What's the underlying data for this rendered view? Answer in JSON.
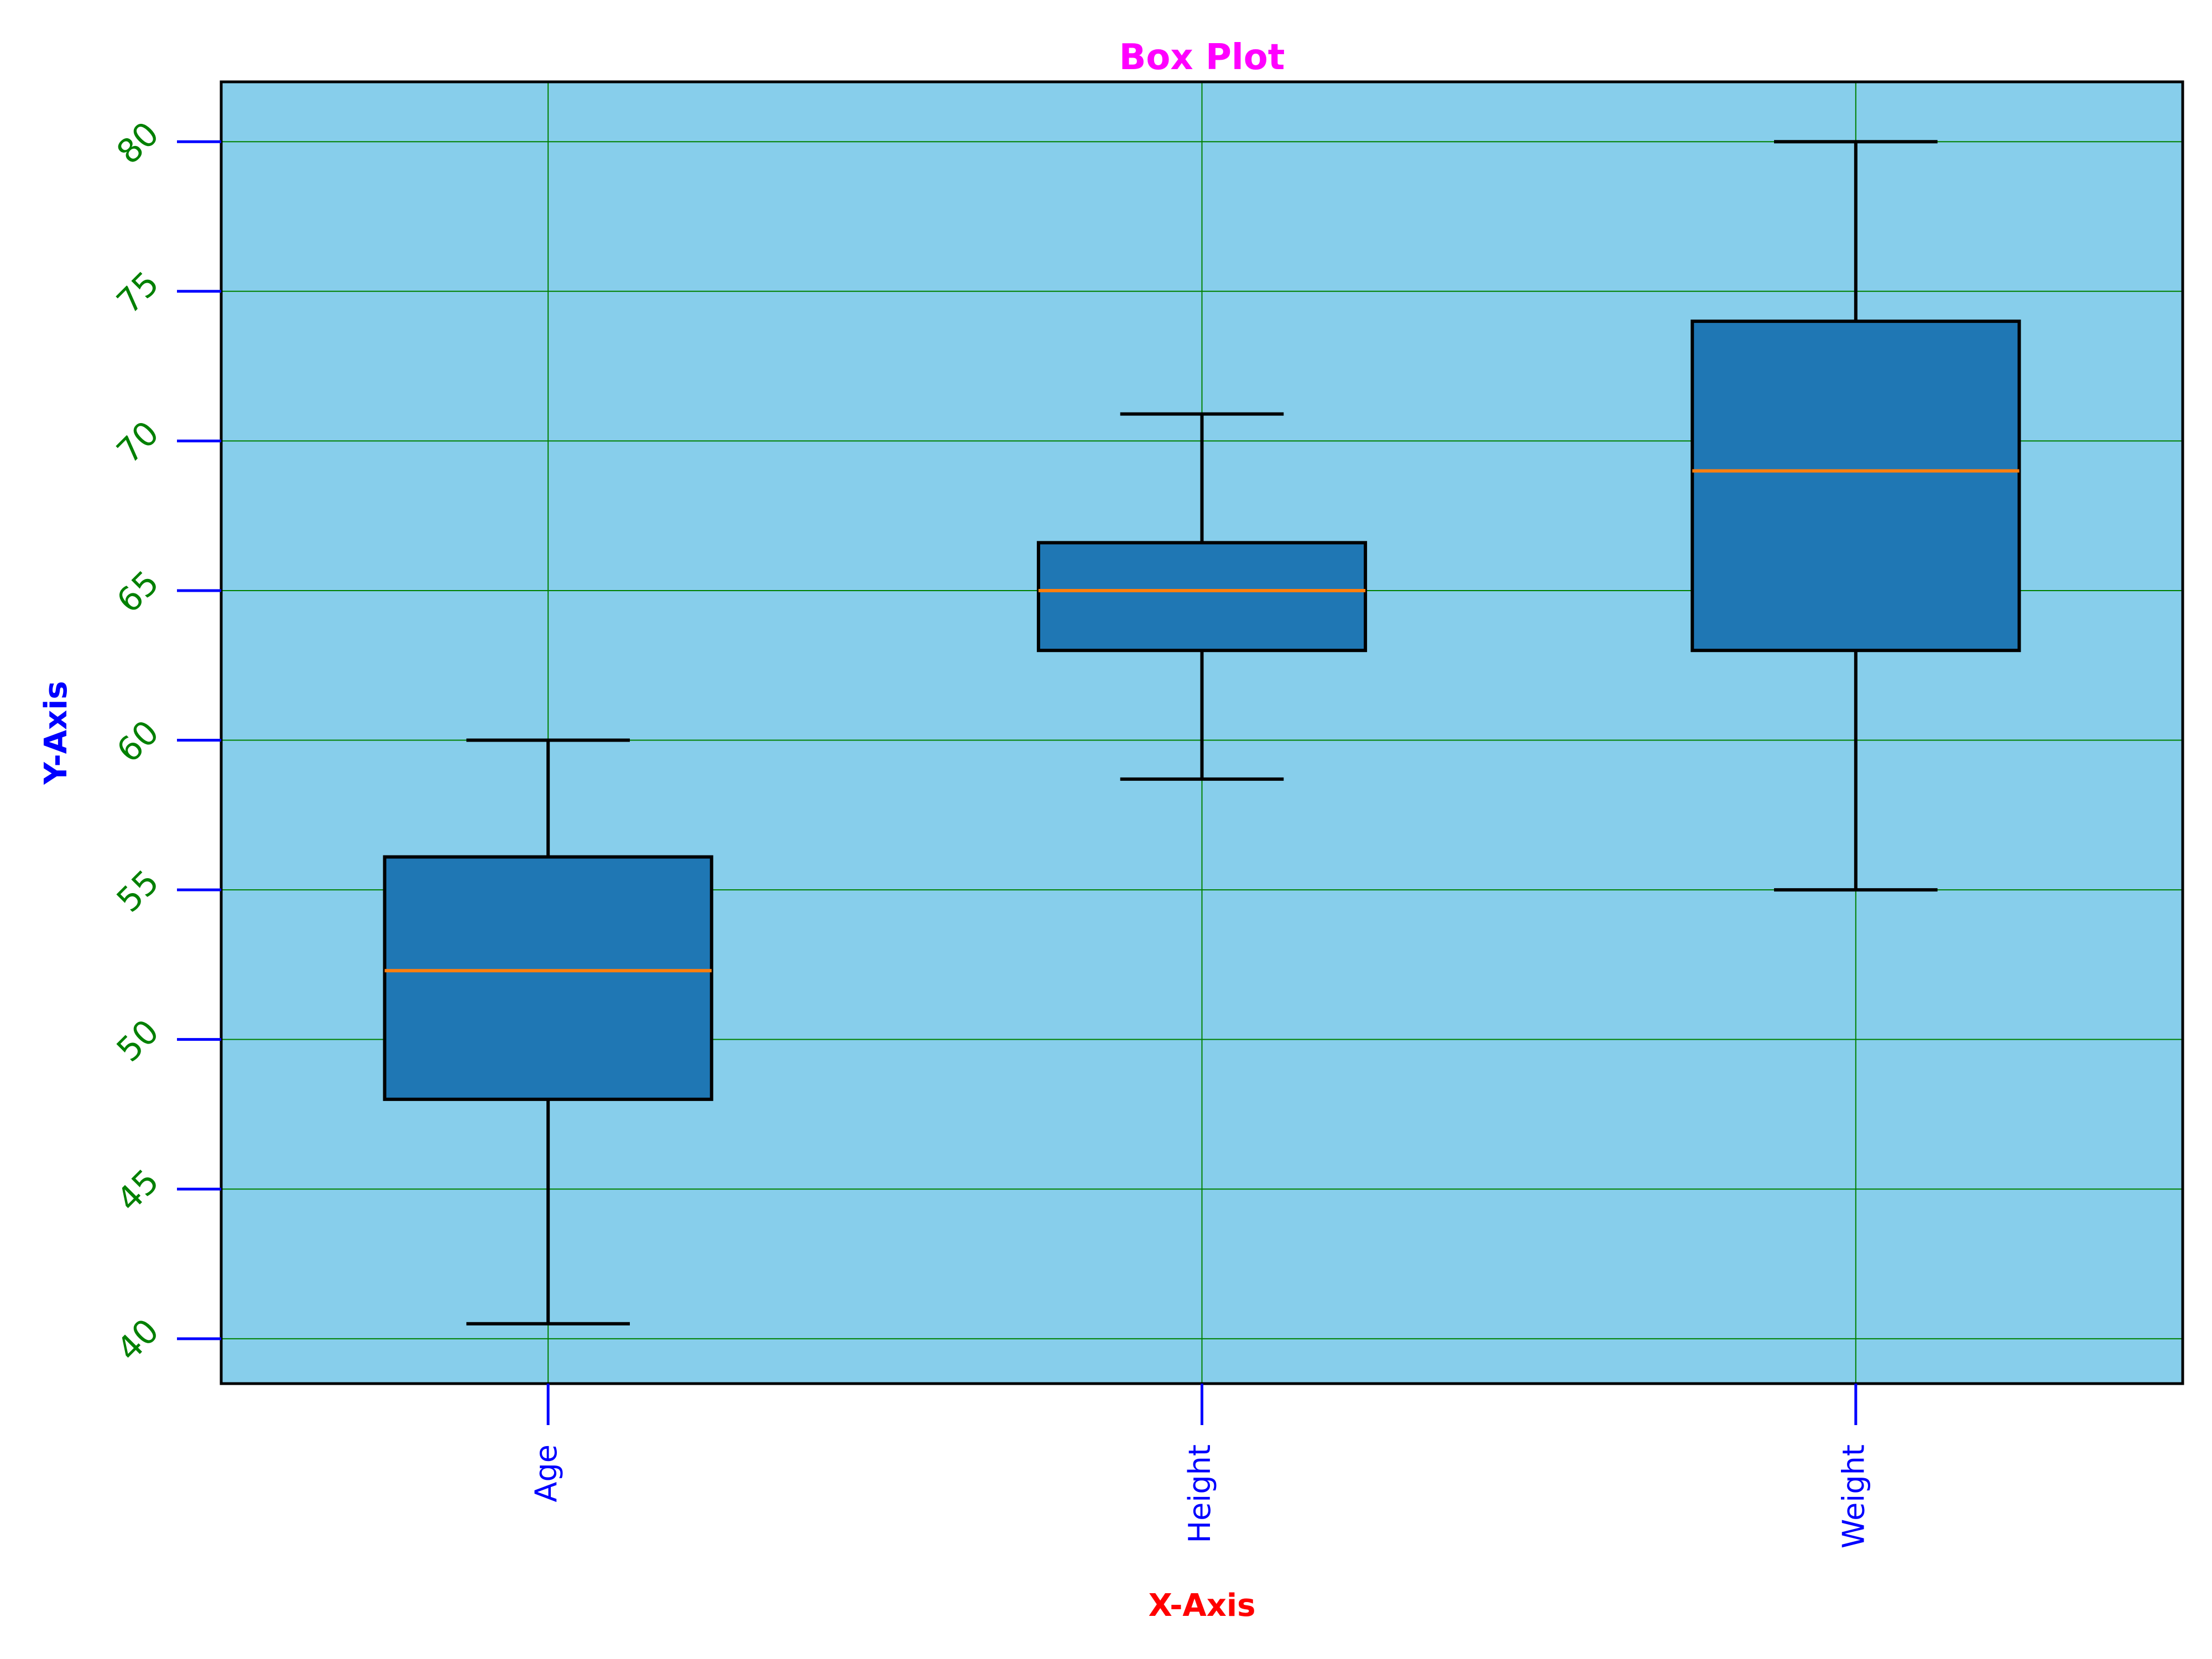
{
  "chart_data": {
    "type": "box",
    "title": "Box Plot",
    "xlabel": "X-Axis",
    "ylabel": "Y-Axis",
    "categories": [
      "Age",
      "Height",
      "Weight"
    ],
    "boxes": [
      {
        "category": "Age",
        "whisker_low": 40.5,
        "q1": 48.0,
        "median": 52.3,
        "q3": 56.1,
        "whisker_high": 60.0
      },
      {
        "category": "Height",
        "whisker_low": 58.7,
        "q1": 63.0,
        "median": 65.0,
        "q3": 66.6,
        "whisker_high": 70.9
      },
      {
        "category": "Weight",
        "whisker_low": 55.0,
        "q1": 63.0,
        "median": 69.0,
        "q3": 74.0,
        "whisker_high": 80.0
      }
    ],
    "ylim": [
      38.5,
      82.0
    ],
    "yticks": [
      40,
      45,
      50,
      55,
      60,
      65,
      70,
      75,
      80
    ],
    "grid": true,
    "colors": {
      "plot_background": "#87CEEB",
      "box_fill": "#1F77B4",
      "median": "#FF7F0E",
      "grid": "#008000",
      "title": "#FF00FF",
      "xlabel": "#FF0000",
      "ylabel": "#0000FF",
      "ytick_labels": "#008000",
      "xtick_labels": "#0000FF",
      "xtick_marks": "#0000FF"
    }
  }
}
